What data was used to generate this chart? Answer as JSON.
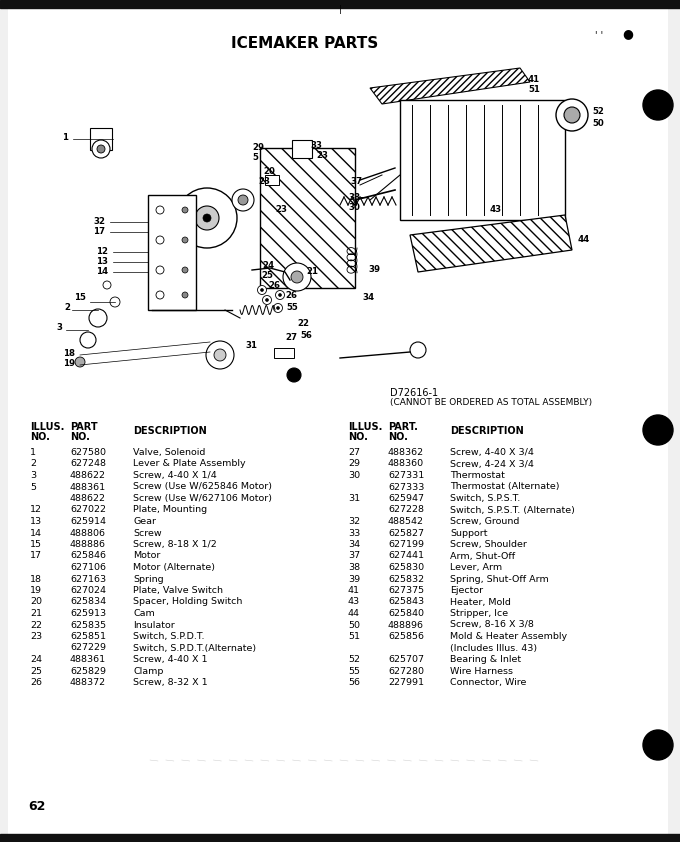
{
  "title": "ICEMAKER PARTS",
  "diagram_ref_line1": "D72616-1",
  "diagram_ref_line2": "(CANNOT BE ORDERED AS TOTAL ASSEMBLY)",
  "page_number": "62",
  "bg_color": "#f0f0f0",
  "paper_color": "#ffffff",
  "text_color": "#000000",
  "title_fontsize": 11,
  "body_fontsize": 6.8,
  "header_fontsize": 7.0,
  "left_table": {
    "rows": [
      [
        "1",
        "627580",
        "Valve, Solenoid"
      ],
      [
        "2",
        "627248",
        "Lever & Plate Assembly"
      ],
      [
        "3",
        "488622",
        "Screw, 4-40 X 1/4"
      ],
      [
        "5",
        "488361",
        "Screw (Use W/625846 Motor)"
      ],
      [
        "",
        "488622",
        "Screw (Use W/627106 Motor)"
      ],
      [
        "12",
        "627022",
        "Plate, Mounting"
      ],
      [
        "13",
        "625914",
        "Gear"
      ],
      [
        "14",
        "488806",
        "Screw"
      ],
      [
        "15",
        "488886",
        "Screw, 8-18 X 1/2"
      ],
      [
        "17",
        "625846",
        "Motor"
      ],
      [
        "",
        "627106",
        "Motor (Alternate)"
      ],
      [
        "18",
        "627163",
        "Spring"
      ],
      [
        "19",
        "627024",
        "Plate, Valve Switch"
      ],
      [
        "20",
        "625834",
        "Spacer, Holding Switch"
      ],
      [
        "21",
        "625913",
        "Cam"
      ],
      [
        "22",
        "625835",
        "Insulator"
      ],
      [
        "23",
        "625851",
        "Switch, S.P.D.T."
      ],
      [
        "",
        "627229",
        "Switch, S.P.D.T.(Alternate)"
      ],
      [
        "24",
        "488361",
        "Screw, 4-40 X 1"
      ],
      [
        "25",
        "625829",
        "Clamp"
      ],
      [
        "26",
        "488372",
        "Screw, 8-32 X 1"
      ]
    ]
  },
  "right_table": {
    "rows": [
      [
        "27",
        "488362",
        "Screw, 4-40 X 3/4"
      ],
      [
        "29",
        "488360",
        "Screw, 4-24 X 3/4"
      ],
      [
        "30",
        "627331",
        "Thermostat"
      ],
      [
        "",
        "627333",
        "Thermostat (Alternate)"
      ],
      [
        "31",
        "625947",
        "Switch, S.P.S.T."
      ],
      [
        "",
        "627228",
        "Switch, S.P.S.T. (Alternate)"
      ],
      [
        "32",
        "488542",
        "Screw, Ground"
      ],
      [
        "33",
        "625827",
        "Support"
      ],
      [
        "34",
        "627199",
        "Screw, Shoulder"
      ],
      [
        "37",
        "627441",
        "Arm, Shut-Off"
      ],
      [
        "38",
        "625830",
        "Lever, Arm"
      ],
      [
        "39",
        "625832",
        "Spring, Shut-Off Arm"
      ],
      [
        "41",
        "627375",
        "Ejector"
      ],
      [
        "43",
        "625843",
        "Heater, Mold"
      ],
      [
        "44",
        "625840",
        "Stripper, Ice"
      ],
      [
        "50",
        "488896",
        "Screw, 8-16 X 3/8"
      ],
      [
        "51",
        "625856",
        "Mold & Heater Assembly"
      ],
      [
        "",
        "",
        "(Includes Illus. 43)"
      ],
      [
        "52",
        "625707",
        "Bearing & Inlet"
      ],
      [
        "55",
        "627280",
        "Wire Harness"
      ],
      [
        "56",
        "227991",
        "Connector, Wire"
      ]
    ]
  }
}
